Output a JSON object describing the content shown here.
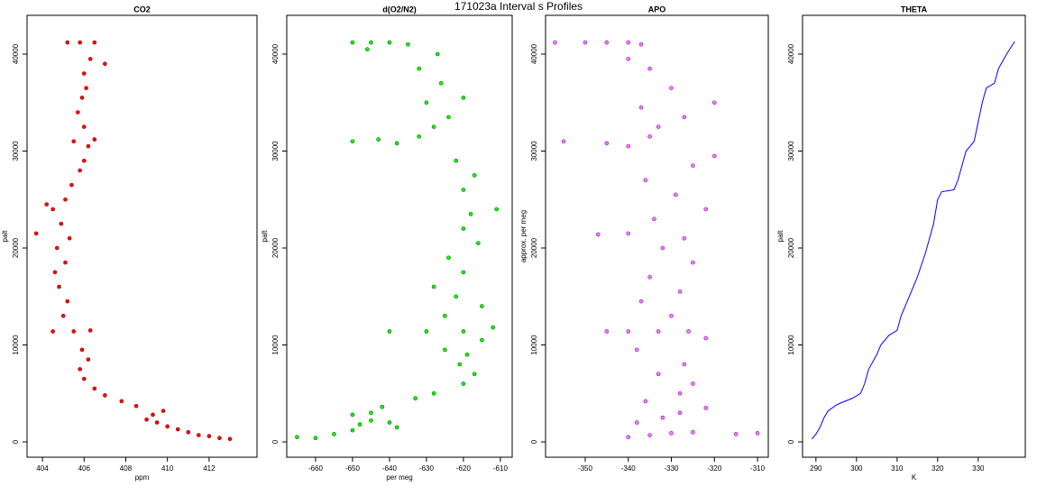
{
  "title": "171023a   Interval s Profiles",
  "chart_data": [
    {
      "type": "scatter",
      "title": "CO2",
      "x_label": "ppm",
      "y_label": "palt",
      "color": "#ff0000",
      "edge_color": "#8b0000",
      "xlim": [
        403.26,
        414.3
      ],
      "ylim": [
        -1580,
        44000
      ],
      "xticks": [
        404,
        406,
        408,
        410,
        412
      ],
      "yticks": [
        0,
        10000,
        20000,
        30000,
        40000
      ],
      "x": [
        413,
        412.5,
        412,
        411.5,
        411,
        410.5,
        410,
        409.5,
        409,
        409.3,
        409.8,
        408.5,
        407.8,
        407,
        406.5,
        406,
        405.8,
        406.2,
        405.9,
        404.5,
        405.5,
        406.3,
        405,
        405.2,
        404.8,
        404.6,
        405.1,
        404.7,
        405.3,
        404.9,
        404.5,
        405.1,
        405.4,
        405.8,
        406,
        406.2,
        405.5,
        406.5,
        406,
        405.7,
        405.9,
        406.1,
        406,
        406.3,
        405.2,
        405.8,
        406.5,
        403.7,
        404.2,
        407
      ],
      "y": [
        300,
        400,
        600,
        700,
        1000,
        1300,
        1600,
        2000,
        2300,
        2800,
        3200,
        3700,
        4200,
        4800,
        5500,
        6500,
        7500,
        8500,
        9500,
        11400,
        11400,
        11500,
        13000,
        14500,
        16000,
        17500,
        18500,
        20000,
        21000,
        22500,
        24000,
        25000,
        26500,
        28000,
        29000,
        30500,
        31000,
        31200,
        32500,
        34000,
        35500,
        36500,
        38000,
        39500,
        41200,
        41200,
        41200,
        21500,
        24500,
        39000
      ]
    },
    {
      "type": "scatter",
      "title": "d(O2/N2)",
      "x_label": "per meg",
      "y_label": "palt",
      "color": "#00ff00",
      "edge_color": "#006400",
      "xlim": [
        -667.8,
        -606.8
      ],
      "ylim": [
        -1580,
        44000
      ],
      "xticks": [
        -660,
        -650,
        -640,
        -630,
        -620,
        -610
      ],
      "yticks": [
        0,
        10000,
        20000,
        30000,
        40000
      ],
      "x": [
        -665,
        -660,
        -655,
        -650,
        -648,
        -645,
        -640,
        -638,
        -650,
        -645,
        -642,
        -633,
        -628,
        -620,
        -617,
        -621,
        -619,
        -625,
        -615,
        -612,
        -640,
        -630,
        -620,
        -625,
        -615,
        -622,
        -628,
        -620,
        -624,
        -616,
        -620,
        -618,
        -611,
        -620,
        -617,
        -622,
        -650,
        -643,
        -638,
        -632,
        -628,
        -624,
        -630,
        -620,
        -626,
        -632,
        -627,
        -650,
        -645,
        -640,
        -635,
        -646
      ],
      "y": [
        500,
        400,
        800,
        1200,
        1800,
        2200,
        2000,
        1500,
        2800,
        3000,
        3600,
        4500,
        5000,
        6000,
        7000,
        8000,
        9000,
        9500,
        10500,
        11800,
        11400,
        11400,
        11400,
        13000,
        14000,
        15000,
        16000,
        17500,
        19000,
        20500,
        22000,
        23500,
        24000,
        26000,
        27500,
        29000,
        31000,
        31200,
        30800,
        31500,
        32500,
        33500,
        35000,
        35500,
        37000,
        38500,
        40000,
        41200,
        41200,
        41200,
        41000,
        40500
      ]
    },
    {
      "type": "scatter",
      "title": "APO",
      "y_label": "approx. per meg",
      "color": "#ee82ee",
      "edge_color": "#9400d3",
      "xlim": [
        -359.2,
        -307.5
      ],
      "ylim": [
        -1580,
        44000
      ],
      "xticks": [
        -350,
        -340,
        -330,
        -320,
        -310
      ],
      "yticks": [
        0,
        10000,
        20000,
        30000,
        40000
      ],
      "x": [
        -340,
        -335,
        -330,
        -325,
        -315,
        -310,
        -338,
        -332,
        -328,
        -322,
        -336,
        -328,
        -325,
        -333,
        -327,
        -338,
        -322,
        -340,
        -333,
        -326,
        -345,
        -330,
        -337,
        -328,
        -335,
        -325,
        -332,
        -340,
        -327,
        -334,
        -322,
        -329,
        -336,
        -325,
        -320,
        -355,
        -345,
        -340,
        -335,
        -333,
        -327,
        -337,
        -330,
        -335,
        -340,
        -357,
        -350,
        -345,
        -340,
        -337,
        -320,
        -347
      ],
      "y": [
        500,
        700,
        900,
        1000,
        800,
        900,
        2000,
        2500,
        3000,
        3500,
        4200,
        5000,
        6000,
        7000,
        8000,
        9500,
        10700,
        11400,
        11400,
        11400,
        11400,
        13000,
        14500,
        15500,
        17000,
        18500,
        20000,
        21500,
        21000,
        23000,
        24000,
        25500,
        27000,
        28500,
        29500,
        31000,
        30800,
        30500,
        31500,
        32500,
        33500,
        34500,
        36500,
        38500,
        39500,
        41200,
        41200,
        41200,
        41200,
        41000,
        35000,
        21400
      ]
    },
    {
      "type": "line",
      "title": "THETA",
      "x_label": "K",
      "y_label": "palt",
      "color": "#0000ff",
      "xlim": [
        286.7,
        341.6
      ],
      "ylim": [
        -1580,
        44000
      ],
      "xticks": [
        290,
        300,
        310,
        320,
        330
      ],
      "yticks": [
        0,
        10000,
        20000,
        30000,
        40000
      ],
      "x": [
        289,
        290,
        291,
        292,
        293,
        295,
        296,
        299,
        301,
        302,
        303,
        305,
        306,
        308,
        310,
        311,
        313,
        315,
        317,
        319,
        320,
        321,
        324,
        325,
        326,
        327,
        329,
        330,
        331,
        332,
        334,
        335,
        337,
        339
      ],
      "y": [
        300,
        800,
        1500,
        2500,
        3200,
        3800,
        4000,
        4500,
        5000,
        6000,
        7500,
        9000,
        10000,
        11000,
        11500,
        13000,
        15000,
        17000,
        19500,
        22500,
        25000,
        25800,
        26000,
        27000,
        28500,
        30000,
        31000,
        33000,
        35000,
        36500,
        37000,
        38500,
        40000,
        41300
      ]
    }
  ]
}
